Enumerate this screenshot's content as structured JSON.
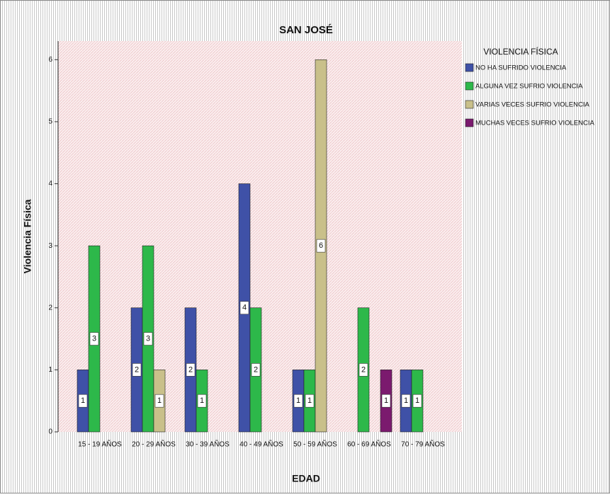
{
  "chart_data": {
    "type": "bar",
    "title": "SAN JOSÉ",
    "x_label": "EDAD",
    "y_label": "Violencia Física",
    "legend_title": "VIOLENCIA FÍSICA",
    "legend": "top-right",
    "categories": [
      "15 - 19 AÑOS",
      "20 - 29 AÑOS",
      "30 - 39 AÑOS",
      "40 - 49 AÑOS",
      "50 - 59 AÑOS",
      "60 - 69 AÑOS",
      "70 - 79 AÑOS"
    ],
    "series": [
      {
        "name": "NO HA SUFRIDO VIOLENCIA",
        "color": "#3f51a7",
        "values": [
          1,
          2,
          2,
          4,
          1,
          null,
          1
        ]
      },
      {
        "name": "ALGUNA VEZ SUFRIO VIOLENCIA",
        "color": "#2db84a",
        "values": [
          3,
          3,
          1,
          2,
          1,
          2,
          1
        ]
      },
      {
        "name": "VARIAS VECES SUFRIO VIOLENCIA",
        "color": "#c9c08a",
        "values": [
          null,
          1,
          null,
          null,
          6,
          null,
          null
        ]
      },
      {
        "name": "MUCHAS VECES SUFRIO VIOLENCIA",
        "color": "#7b1a6e",
        "values": [
          null,
          null,
          null,
          null,
          null,
          1,
          null
        ]
      }
    ],
    "ylim": [
      0,
      6.3
    ],
    "yticks": [
      0,
      1,
      2,
      3,
      4,
      5,
      6
    ]
  }
}
